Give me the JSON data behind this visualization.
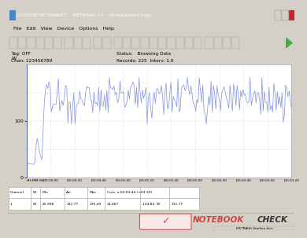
{
  "title_bar": "GOSSEN METRAWATT    METRAwin 10    Unregistered copy",
  "tag": "Tag: OFF",
  "chan": "Chan: 123456789",
  "status": "Status:   Browsing Data",
  "records": "Records: 225  Interv: 1.0",
  "y_max_label": "100",
  "y_unit": "W",
  "y_min_label": "0",
  "x_labels": [
    "HH:MM:SS",
    "|00:00:00",
    "|00:00:20",
    "|00:00:40",
    "|00:01:00",
    "|00:01:20",
    "|00:01:40",
    "|00:02:00",
    "|00:02:20",
    "|00:02:40",
    "|00:03:00",
    "|00:03:20"
  ],
  "line_color": "#8899dd",
  "grid_color": "#d0d0d0",
  "bg_color": "#f0f0f0",
  "chart_bg": "#ffffff",
  "titlebar_bg": "#0a246a",
  "titlebar_fg": "#ffffff",
  "menu_bg": "#d4d0c8",
  "table_headers": [
    "Channel",
    "W",
    "Min",
    "Avr",
    "Max",
    "Curs: x:00:03:44 (=03:39)"
  ],
  "table_row": [
    "1",
    "W",
    "25.998",
    "132.77",
    "176.49",
    "23.067",
    "134.84  W",
    "111.77"
  ],
  "watermark_text": "NOTEBOOKCHECK",
  "watermark_check": "✓",
  "status_bar_text": "METRAHit Starline-Seri",
  "menu_items": "File   Edit   View   Device   Options   Help",
  "n_points": 225,
  "seed": 42
}
